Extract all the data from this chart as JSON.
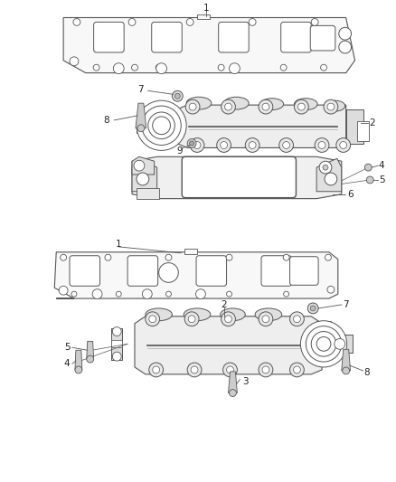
{
  "bg_color": "#ffffff",
  "lc": "#555555",
  "lc2": "#333333",
  "fig_w": 4.38,
  "fig_h": 5.33,
  "dpi": 100
}
